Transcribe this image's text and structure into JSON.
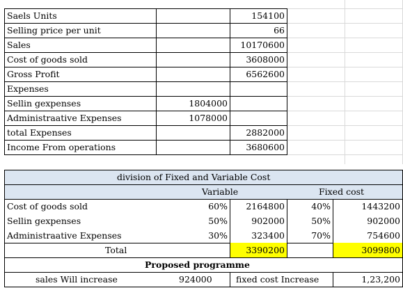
{
  "top_table": {
    "rows": [
      {
        "label": "Saels Units",
        "col_b": "",
        "col_c": "154100"
      },
      {
        "label": "Selling price per unit",
        "col_b": "",
        "col_c": "66"
      },
      {
        "label": "Sales",
        "col_b": "",
        "col_c": "10170600"
      },
      {
        "label": "Cost of goods sold",
        "col_b": "",
        "col_c": "3608000"
      },
      {
        "label": "Gross Profit",
        "col_b": "",
        "col_c": "6562600"
      },
      {
        "label": "Expenses",
        "col_b": "",
        "col_c": ""
      },
      {
        "label": "Sellin gexpenses",
        "col_b": "1804000",
        "col_c": ""
      },
      {
        "label": "Administraative Expenses",
        "col_b": "1078000",
        "col_c": ""
      },
      {
        "label": "total Expenses",
        "col_b": "",
        "col_c": "2882000"
      },
      {
        "label": "Income From operations",
        "col_b": "",
        "col_c": "3680600"
      }
    ]
  },
  "division": {
    "title": "division of Fixed and Variable Cost",
    "variable_header": "Variable",
    "fixed_header": "Fixed cost",
    "rows": [
      {
        "label": "Cost of goods sold",
        "var_pct": "60%",
        "var_amt": "2164800",
        "fix_pct": "40%",
        "fix_amt": "1443200"
      },
      {
        "label": "Sellin gexpenses",
        "var_pct": "50%",
        "var_amt": "902000",
        "fix_pct": "50%",
        "fix_amt": "902000"
      },
      {
        "label": "Administraative Expenses",
        "var_pct": "30%",
        "var_amt": "323400",
        "fix_pct": "70%",
        "fix_amt": "754600"
      }
    ],
    "total_label": "Total",
    "total_variable": "3390200",
    "total_fixed": "3099800",
    "highlight_color": "#ffff00",
    "header_fill": "#dbe5f1"
  },
  "proposed": {
    "title": "Proposed programme",
    "sales_label": "sales Will increase",
    "sales_value": "924000",
    "fixed_label": "fixed cost Increase",
    "fixed_value": "1,23,200"
  }
}
